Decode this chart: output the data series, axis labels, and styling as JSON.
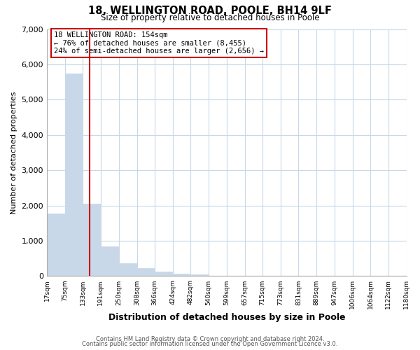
{
  "title_line1": "18, WELLINGTON ROAD, POOLE, BH14 9LF",
  "title_line2": "Size of property relative to detached houses in Poole",
  "xlabel": "Distribution of detached houses by size in Poole",
  "ylabel": "Number of detached properties",
  "bar_color": "#c8d8e8",
  "bar_edge_color": "#c8d8e8",
  "bin_edges": [
    17,
    75,
    133,
    191,
    250,
    308,
    366,
    424,
    482,
    540,
    599,
    657,
    715,
    773,
    831,
    889,
    947,
    1006,
    1064,
    1122,
    1180
  ],
  "bar_heights": [
    1780,
    5750,
    2050,
    840,
    370,
    230,
    130,
    70,
    40,
    0,
    0,
    0,
    0,
    0,
    0,
    0,
    0,
    0,
    0,
    0
  ],
  "tick_labels": [
    "17sqm",
    "75sqm",
    "133sqm",
    "191sqm",
    "250sqm",
    "308sqm",
    "366sqm",
    "424sqm",
    "482sqm",
    "540sqm",
    "599sqm",
    "657sqm",
    "715sqm",
    "773sqm",
    "831sqm",
    "889sqm",
    "947sqm",
    "1006sqm",
    "1064sqm",
    "1122sqm",
    "1180sqm"
  ],
  "ylim": [
    0,
    7000
  ],
  "yticks": [
    0,
    1000,
    2000,
    3000,
    4000,
    5000,
    6000,
    7000
  ],
  "vline_x": 154,
  "vline_color": "#cc0000",
  "annotation_title": "18 WELLINGTON ROAD: 154sqm",
  "annotation_line2": "← 76% of detached houses are smaller (8,455)",
  "annotation_line3": "24% of semi-detached houses are larger (2,656) →",
  "annotation_box_color": "#ffffff",
  "annotation_box_edge": "#cc0000",
  "footer_line1": "Contains HM Land Registry data © Crown copyright and database right 2024.",
  "footer_line2": "Contains public sector information licensed under the Open Government Licence v3.0.",
  "background_color": "#ffffff",
  "grid_color": "#c8d8e8"
}
